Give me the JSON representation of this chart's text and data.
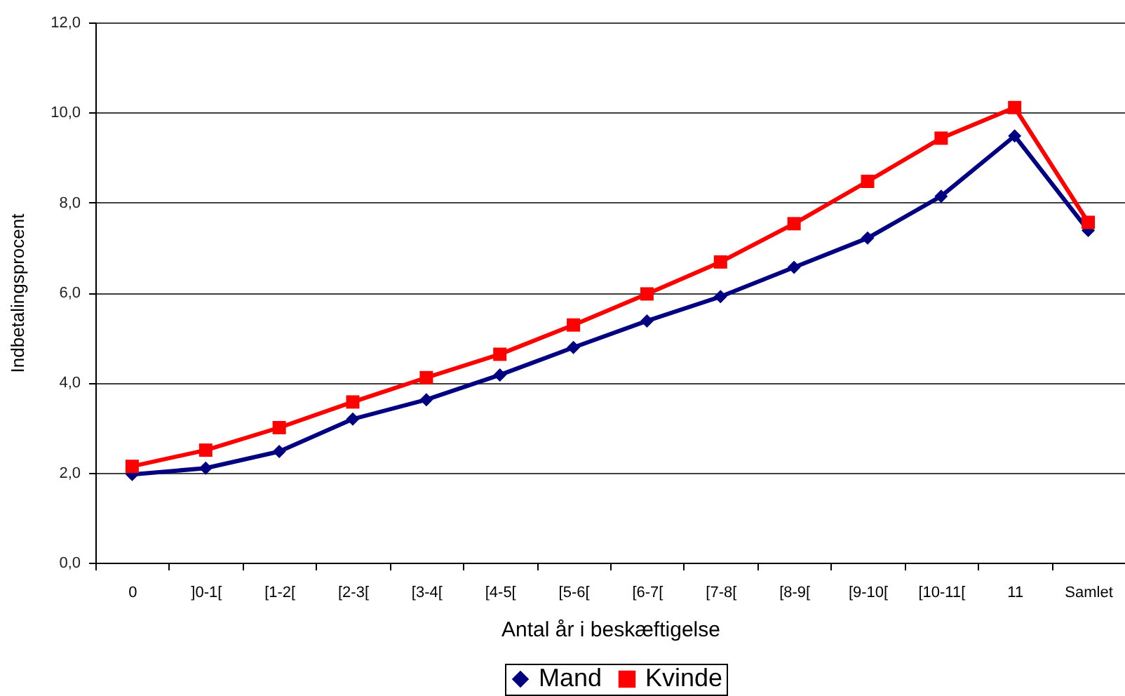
{
  "chart_data": {
    "type": "line",
    "xlabel": "Antal år i beskæftigelse",
    "ylabel": "Indbetalingsprocent",
    "categories": [
      "0",
      "]0-1[",
      "[1-2[",
      "[2-3[",
      "[3-4[",
      "[4-5[",
      "[5-6[",
      "[6-7[",
      "[7-8[",
      "[8-9[",
      "[9-10[",
      "[10-11[",
      "11",
      "Samlet"
    ],
    "series": [
      {
        "name": "Mand",
        "color": "#000080",
        "marker": "diamond",
        "values": [
          1.96,
          2.1,
          2.47,
          3.19,
          3.62,
          4.17,
          4.78,
          5.37,
          5.91,
          6.56,
          7.21,
          8.14,
          9.48,
          7.38
        ]
      },
      {
        "name": "Kvinde",
        "color": "#ff0000",
        "marker": "square",
        "values": [
          2.14,
          2.5,
          3.0,
          3.57,
          4.11,
          4.63,
          5.28,
          5.97,
          6.68,
          7.53,
          8.47,
          9.43,
          10.11,
          7.56
        ]
      }
    ],
    "ylim": [
      0,
      12
    ],
    "yticks": [
      {
        "value": 0,
        "label": "0,0"
      },
      {
        "value": 2,
        "label": "2,0"
      },
      {
        "value": 4,
        "label": "4,0"
      },
      {
        "value": 6,
        "label": "6,0"
      },
      {
        "value": 8,
        "label": "8,0"
      },
      {
        "value": 10,
        "label": "10,0"
      },
      {
        "value": 12,
        "label": "12,0"
      }
    ],
    "grid": "y",
    "legend": "bottom",
    "line_style": "solid"
  }
}
